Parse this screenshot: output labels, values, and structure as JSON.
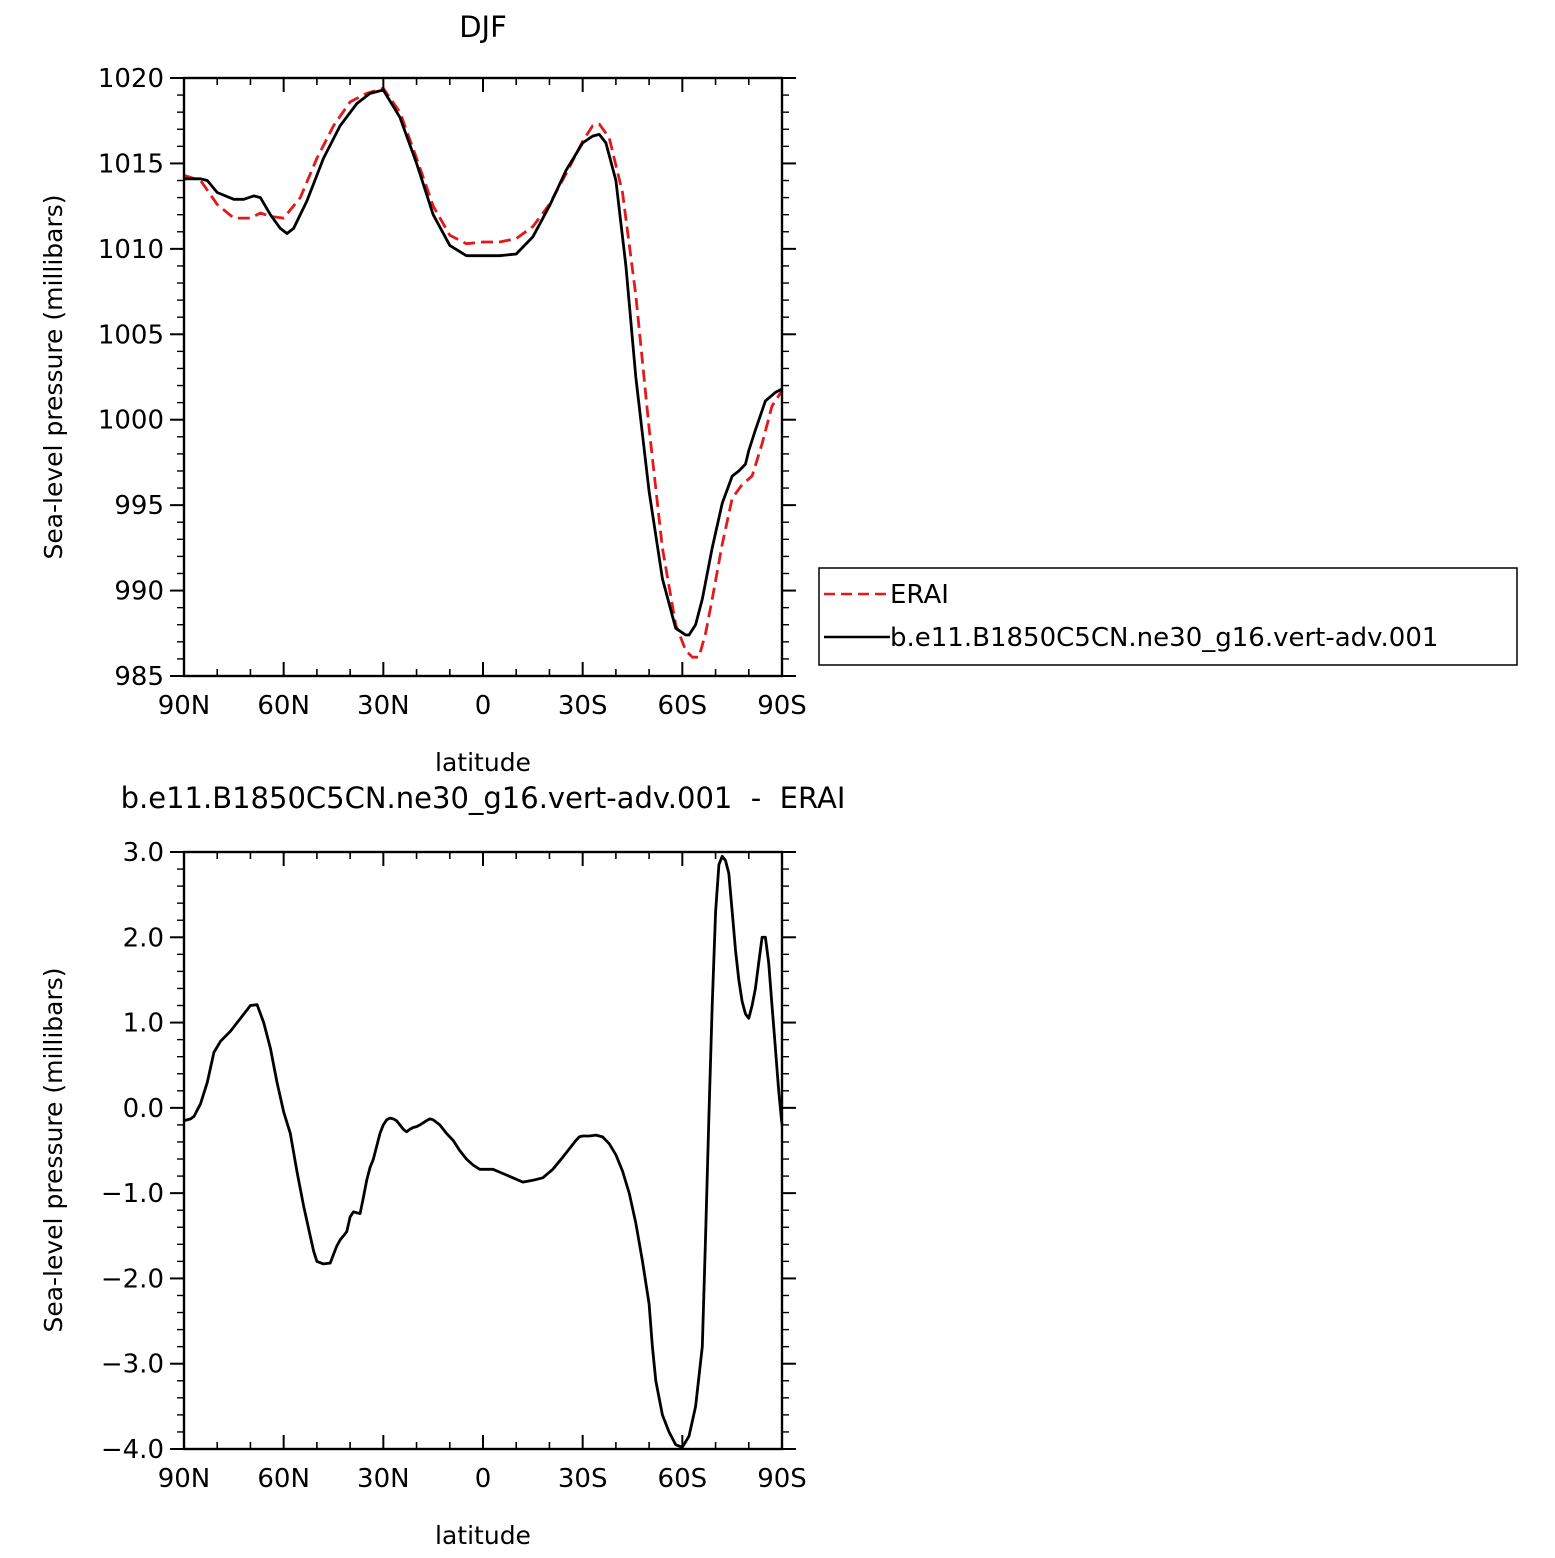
{
  "chart_data": [
    {
      "type": "line",
      "title": "DJF",
      "xlabel": "latitude",
      "ylabel": "Sea-level pressure (millibars)",
      "xlim": [
        90,
        -90
      ],
      "ylim": [
        985,
        1020
      ],
      "xticks": [
        {
          "value": 90,
          "label": "90N"
        },
        {
          "value": 60,
          "label": "60N"
        },
        {
          "value": 30,
          "label": "30N"
        },
        {
          "value": 0,
          "label": "0"
        },
        {
          "value": -30,
          "label": "30S"
        },
        {
          "value": -60,
          "label": "60S"
        },
        {
          "value": -90,
          "label": "90S"
        }
      ],
      "yticks": [
        1020,
        1015,
        1010,
        1005,
        1000,
        995,
        990,
        985
      ],
      "ytick_labels": [
        "1020",
        "1015",
        "1010",
        "1005",
        "1000",
        "995",
        "990",
        "985"
      ],
      "legend": "right",
      "series": [
        {
          "name": "ERAI",
          "color": "#e31a1c",
          "style": "dashed",
          "x": [
            90,
            85,
            80,
            75,
            70,
            67,
            64,
            60,
            55,
            50,
            45,
            40,
            35,
            30,
            25,
            20,
            15,
            10,
            5,
            0,
            -5,
            -10,
            -15,
            -20,
            -25,
            -30,
            -33,
            -35,
            -38,
            -42,
            -46,
            -50,
            -54,
            -58,
            -61,
            -63,
            -65,
            -67,
            -69,
            -72,
            -75,
            -78,
            -81,
            -84,
            -87,
            -90
          ],
          "values": [
            1014.3,
            1014.0,
            1012.6,
            1011.8,
            1011.8,
            1012.1,
            1011.9,
            1011.8,
            1013.0,
            1015.3,
            1017.2,
            1018.6,
            1019.1,
            1019.4,
            1018.0,
            1015.3,
            1012.5,
            1010.8,
            1010.3,
            1010.4,
            1010.4,
            1010.6,
            1011.3,
            1012.6,
            1014.4,
            1016.3,
            1017.2,
            1017.3,
            1016.5,
            1013.3,
            1007.3,
            999.5,
            992.5,
            988.0,
            986.5,
            986.1,
            986.1,
            987.5,
            989.5,
            992.7,
            995.4,
            996.2,
            996.7,
            998.6,
            1000.8,
            1001.7
          ]
        },
        {
          "name": "b.e11.B1850C5CN.ne30_g16.vert-adv.001",
          "color": "#000000",
          "style": "solid",
          "x": [
            90,
            85,
            83,
            80,
            75,
            72,
            69,
            67,
            64,
            61,
            59,
            57,
            53,
            48,
            43,
            38,
            34,
            30,
            25,
            20,
            15,
            10,
            5,
            0,
            -5,
            -10,
            -15,
            -20,
            -25,
            -30,
            -33,
            -35,
            -37,
            -40,
            -43,
            -46,
            -50,
            -54,
            -58,
            -61,
            -62,
            -64,
            -66,
            -69,
            -72,
            -75,
            -77,
            -79,
            -80,
            -82,
            -85,
            -88,
            -90
          ],
          "values": [
            1014.1,
            1014.1,
            1014.0,
            1013.3,
            1012.9,
            1012.9,
            1013.1,
            1013.0,
            1012.0,
            1011.2,
            1010.9,
            1011.2,
            1012.8,
            1015.3,
            1017.2,
            1018.5,
            1019.1,
            1019.3,
            1017.7,
            1015.0,
            1012.0,
            1010.2,
            1009.6,
            1009.6,
            1009.6,
            1009.7,
            1010.7,
            1012.5,
            1014.6,
            1016.2,
            1016.6,
            1016.7,
            1016.2,
            1014.0,
            1009.0,
            1002.5,
            995.8,
            990.7,
            987.8,
            987.4,
            987.4,
            988.0,
            989.5,
            992.5,
            995.1,
            996.7,
            997.0,
            997.4,
            998.2,
            999.4,
            1001.1,
            1001.6,
            1001.8
          ]
        }
      ]
    },
    {
      "type": "line",
      "title": "b.e11.B1850C5CN.ne30_g16.vert-adv.001  -  ERAI",
      "xlabel": "latitude",
      "ylabel": "Sea-level pressure (millibars)",
      "xlim": [
        90,
        -90
      ],
      "ylim": [
        -4.0,
        3.0
      ],
      "xticks": [
        {
          "value": 90,
          "label": "90N"
        },
        {
          "value": 60,
          "label": "60N"
        },
        {
          "value": 30,
          "label": "30N"
        },
        {
          "value": 0,
          "label": "0"
        },
        {
          "value": -30,
          "label": "30S"
        },
        {
          "value": -60,
          "label": "60S"
        },
        {
          "value": -90,
          "label": "90S"
        }
      ],
      "yticks": [
        3.0,
        2.0,
        1.0,
        0.0,
        -1.0,
        -2.0,
        -3.0,
        -4.0
      ],
      "ytick_labels": [
        "3.0",
        "2.0",
        "1.0",
        "0.0",
        "−1.0",
        "−2.0",
        "−3.0",
        "−4.0"
      ],
      "series": [
        {
          "color": "#000000",
          "style": "solid",
          "x": [
            90,
            88,
            87,
            85,
            83,
            81,
            79,
            76,
            73,
            71,
            70,
            68,
            66,
            64,
            62,
            60,
            58,
            56,
            54,
            52,
            51,
            50,
            48,
            46,
            45,
            44,
            43,
            42,
            41,
            40,
            39,
            37,
            36,
            35,
            34,
            33,
            31,
            30,
            29,
            28,
            27,
            26,
            25,
            24,
            23,
            22,
            21,
            20,
            19,
            17,
            16,
            15,
            13,
            11,
            9,
            7,
            5,
            3,
            1,
            0,
            -3,
            -6,
            -9,
            -12,
            -15,
            -18,
            -21,
            -24,
            -26,
            -28,
            -29,
            -30,
            -32,
            -34,
            -36,
            -38,
            -40,
            -42,
            -44,
            -46,
            -48,
            -50,
            -51,
            -52,
            -54,
            -56,
            -58,
            -60,
            -62,
            -64,
            -66,
            -67,
            -68,
            -69,
            -70,
            -71,
            -72,
            -73,
            -74,
            -75,
            -76,
            -77,
            -78,
            -79,
            -80,
            -81,
            -82,
            -83,
            -84,
            -85,
            -86,
            -87,
            -88,
            -89,
            -90
          ],
          "values": [
            -0.15,
            -0.13,
            -0.1,
            0.05,
            0.3,
            0.65,
            0.78,
            0.9,
            1.05,
            1.15,
            1.2,
            1.21,
            1.0,
            0.7,
            0.3,
            -0.05,
            -0.3,
            -0.75,
            -1.15,
            -1.5,
            -1.68,
            -1.8,
            -1.83,
            -1.82,
            -1.72,
            -1.62,
            -1.55,
            -1.5,
            -1.45,
            -1.28,
            -1.22,
            -1.24,
            -1.05,
            -0.85,
            -0.7,
            -0.6,
            -0.3,
            -0.2,
            -0.14,
            -0.12,
            -0.13,
            -0.15,
            -0.2,
            -0.25,
            -0.28,
            -0.25,
            -0.23,
            -0.22,
            -0.2,
            -0.15,
            -0.13,
            -0.14,
            -0.2,
            -0.3,
            -0.38,
            -0.5,
            -0.6,
            -0.67,
            -0.72,
            -0.72,
            -0.72,
            -0.77,
            -0.82,
            -0.87,
            -0.85,
            -0.82,
            -0.72,
            -0.58,
            -0.48,
            -0.38,
            -0.34,
            -0.33,
            -0.33,
            -0.32,
            -0.34,
            -0.42,
            -0.55,
            -0.74,
            -1.0,
            -1.35,
            -1.8,
            -2.3,
            -2.8,
            -3.2,
            -3.6,
            -3.8,
            -3.95,
            -3.98,
            -3.85,
            -3.5,
            -2.8,
            -1.5,
            -0.1,
            1.2,
            2.3,
            2.85,
            2.95,
            2.9,
            2.75,
            2.3,
            1.85,
            1.5,
            1.25,
            1.1,
            1.05,
            1.2,
            1.4,
            1.7,
            2.0,
            2.0,
            1.7,
            1.2,
            0.7,
            0.2,
            -0.2
          ]
        }
      ]
    }
  ]
}
